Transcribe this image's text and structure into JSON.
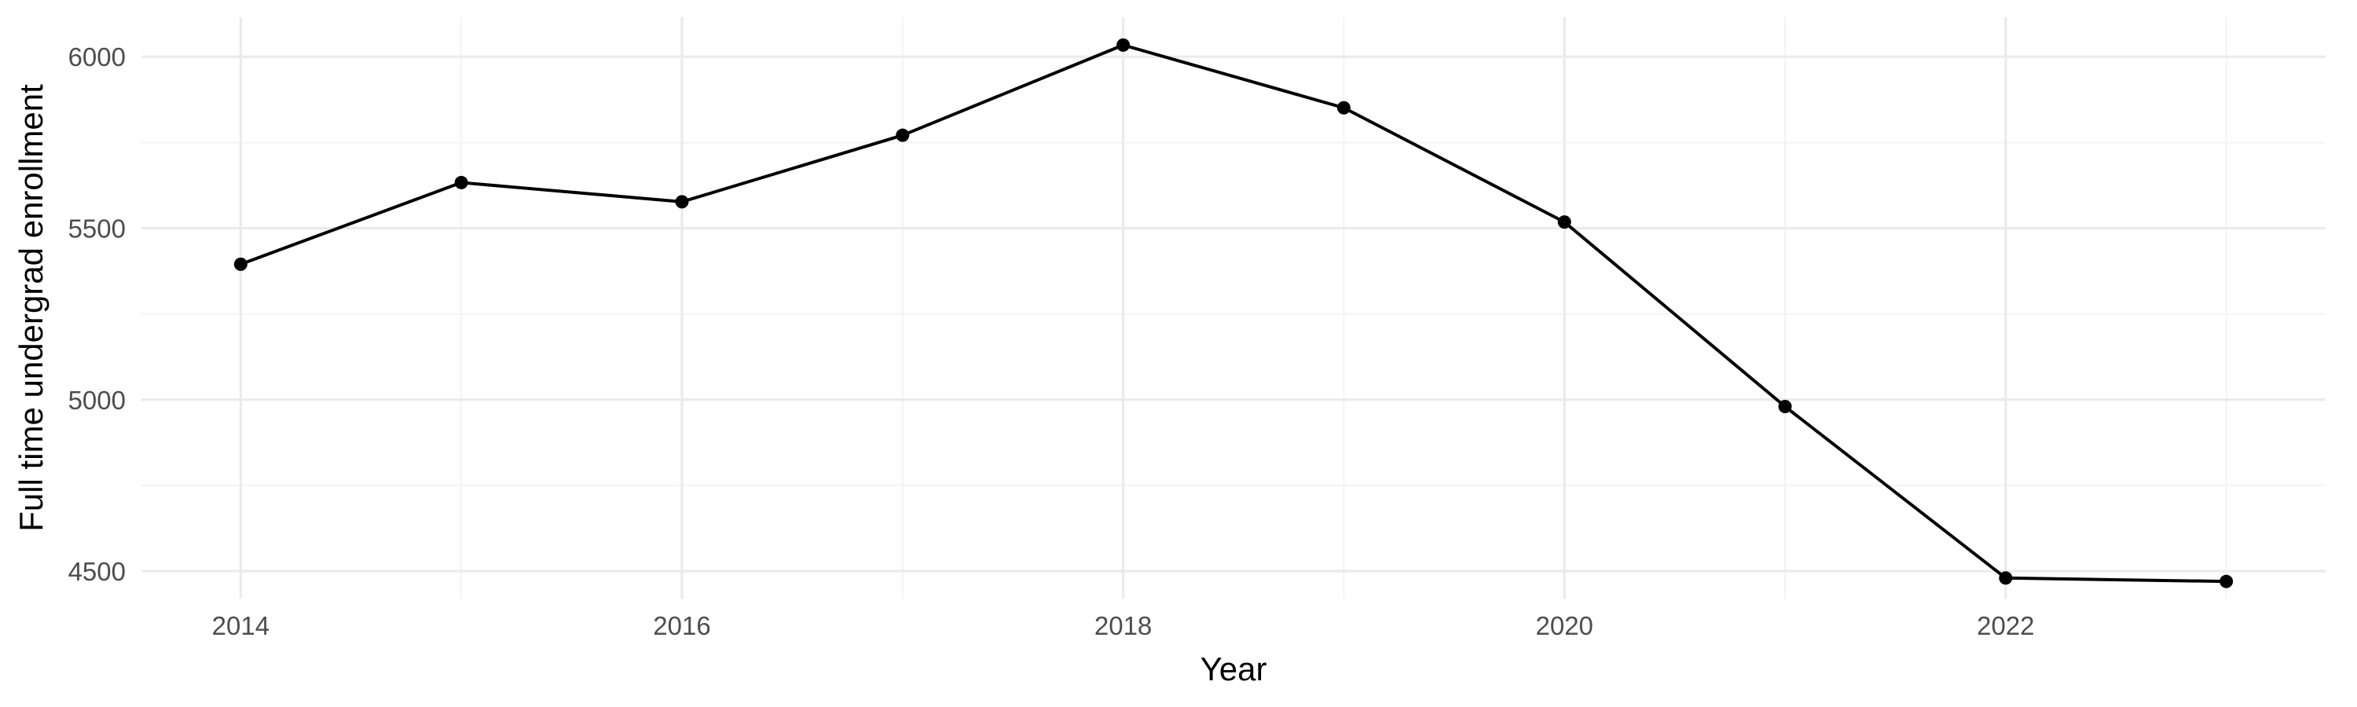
{
  "chart_data": {
    "type": "line",
    "xlabel": "Year",
    "ylabel": "Full time undergrad enrollment",
    "x": [
      2014,
      2015,
      2016,
      2017,
      2018,
      2019,
      2020,
      2021,
      2022,
      2023
    ],
    "series": [
      {
        "values": [
          5395,
          5633,
          5577,
          5771,
          6034,
          5851,
          5518,
          4980,
          4480,
          4470
        ]
      }
    ],
    "xlim": [
      2013.55,
      2023.45
    ],
    "ylim": [
      4420,
      6115
    ],
    "x_ticks": [
      "2014",
      "2016",
      "2018",
      "2020",
      "2022"
    ],
    "y_ticks": [
      "4500",
      "5000",
      "5500",
      "6000"
    ],
    "grid": true,
    "legend": "none",
    "colors": {
      "line": "#000000",
      "grid": "#ebebeb",
      "tick_text": "#4d4d4d",
      "background": "#ffffff"
    }
  }
}
